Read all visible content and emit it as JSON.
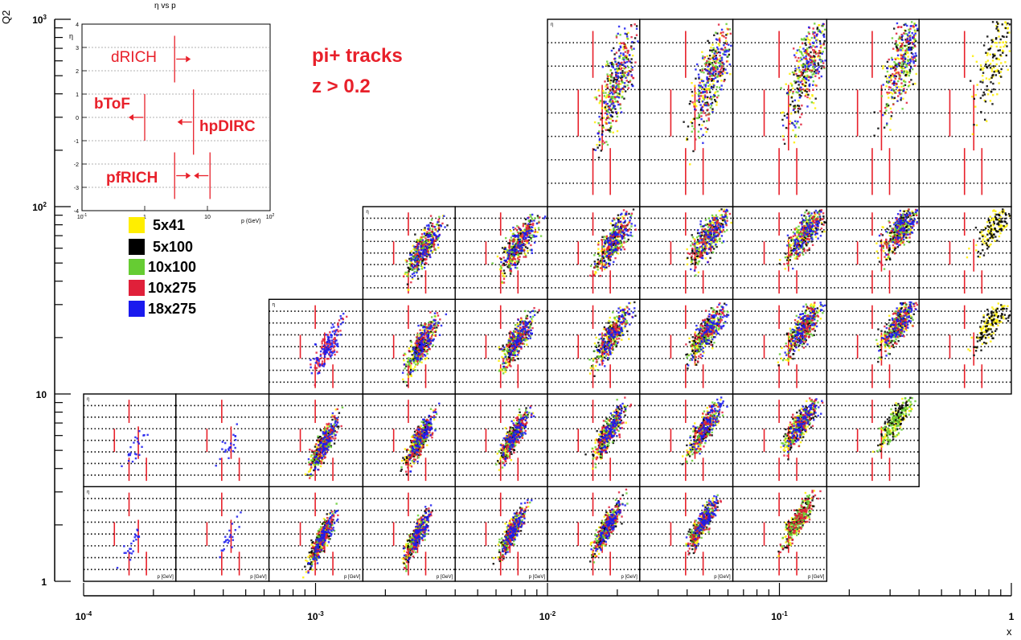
{
  "chart_data": {
    "type": "scatter",
    "title": "pi+ tracks",
    "subtitle": "z > 0.2",
    "xlabel": "x",
    "ylabel": "Q2",
    "x_scale": "log",
    "y_scale": "log",
    "xlim": [
      0.0001,
      1
    ],
    "ylim": [
      1,
      1000
    ],
    "x_ticks": [
      "10^-4",
      "10^-3",
      "10^-2",
      "10^-1",
      "1"
    ],
    "y_ticks": [
      "1",
      "10",
      "10^2",
      "10^3"
    ],
    "bins": {
      "x_edges": [
        0.0001,
        0.00025,
        0.00063,
        0.0016,
        0.004,
        0.01,
        0.025,
        0.063,
        0.16,
        0.4,
        1.0
      ],
      "q2_edges": [
        1,
        3.2,
        10,
        32,
        100,
        1000
      ],
      "occupied_x_bins_by_q2_row": [
        [
          0,
          1,
          2,
          3,
          4,
          5,
          6,
          7
        ],
        [
          0,
          1,
          2,
          3,
          4,
          5,
          6,
          7,
          8
        ],
        [
          2,
          3,
          4,
          5,
          6,
          7,
          8,
          9
        ],
        [
          3,
          4,
          5,
          6,
          7,
          8,
          9
        ],
        [
          5,
          6,
          7,
          8,
          9
        ]
      ]
    },
    "cell_plot": {
      "xlabel": "p [GeV]",
      "ylabel": "η",
      "x_scale": "log",
      "xlim": [
        0.1,
        100
      ],
      "ylim": [
        -4,
        4
      ]
    },
    "series": [
      {
        "name": "5x41",
        "color": "#ffee00"
      },
      {
        "name": "5x100",
        "color": "#000000"
      },
      {
        "name": "10x100",
        "color": "#66cc33"
      },
      {
        "name": "10x275",
        "color": "#e0203a"
      },
      {
        "name": "18x275",
        "color": "#1a1aee"
      }
    ],
    "inset": {
      "title": "η vs p",
      "xlabel": "p (GeV)",
      "ylabel": "η",
      "x_ticks": [
        "10^-1",
        "1",
        "10",
        "10^2"
      ],
      "y_ticks": [
        "-4",
        "-3",
        "-2",
        "-1",
        "0",
        "1",
        "2",
        "3",
        "4"
      ],
      "detectors": [
        {
          "name": "dRICH",
          "p_threshold_gev": 3,
          "eta_min": 1.5,
          "eta_max": 3.5
        },
        {
          "name": "bToF",
          "p_threshold_gev": 1,
          "eta_min": -1,
          "eta_max": 1
        },
        {
          "name": "hpDIRC",
          "p_threshold_gev": 6,
          "eta_min": -1.6,
          "eta_max": 1.2
        },
        {
          "name": "pfRICH",
          "p_threshold_gev": 3,
          "eta_min": -3.5,
          "eta_max": -1.5
        },
        {
          "name": "pfRICH",
          "p_threshold_gev": 11,
          "eta_min": -3.5,
          "eta_max": -1.5
        }
      ]
    }
  }
}
